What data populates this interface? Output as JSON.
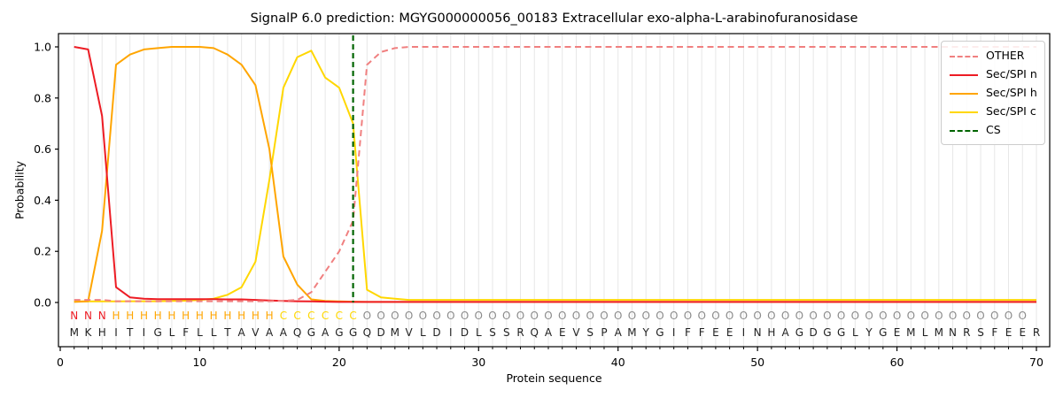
{
  "title": "SignalP 6.0 prediction: MGYG000000056_00183 Extracellular exo-alpha-L-arabinofuranosidase",
  "chart_data": {
    "type": "line",
    "title": "SignalP 6.0 prediction: MGYG000000056_00183 Extracellular exo-alpha-L-arabinofuranosidase",
    "xlabel": "Protein sequence",
    "ylabel": "Probability",
    "x_ticks": [
      0,
      10,
      20,
      30,
      40,
      50,
      60,
      70
    ],
    "y_ticks": [
      "0.0",
      "0.2",
      "0.4",
      "0.6",
      "0.8",
      "1.0"
    ],
    "xlim": [
      -0.2,
      71.2
    ],
    "ylim": [
      -0.17,
      1.05
    ],
    "grid": "vertical line per residue, light gray; no horizontal grid",
    "legend_position": "upper right",
    "x_first": 1,
    "x_count": 70,
    "series": [
      {
        "name": "OTHER",
        "color": "#f08080",
        "style": "dashed",
        "values": [
          0.01,
          0.01,
          0.01,
          0.005,
          0.005,
          0.005,
          0.005,
          0.005,
          0.005,
          0.005,
          0.005,
          0.005,
          0.005,
          0.005,
          0.005,
          0.007,
          0.01,
          0.04,
          0.12,
          0.2,
          0.32,
          0.93,
          0.98,
          0.995,
          1.0,
          1.0,
          1.0,
          1.0,
          1.0,
          1.0,
          1.0,
          1.0,
          1.0,
          1.0,
          1.0,
          1.0,
          1.0,
          1.0,
          1.0,
          1.0,
          1.0,
          1.0,
          1.0,
          1.0,
          1.0,
          1.0,
          1.0,
          1.0,
          1.0,
          1.0,
          1.0,
          1.0,
          1.0,
          1.0,
          1.0,
          1.0,
          1.0,
          1.0,
          1.0,
          1.0,
          1.0,
          1.0,
          1.0,
          1.0,
          1.0,
          1.0,
          1.0,
          1.0,
          1.0,
          1.0
        ]
      },
      {
        "name": "Sec/SPI n",
        "color": "#ed1c24",
        "style": "solid",
        "values": [
          1.0,
          0.99,
          0.73,
          0.06,
          0.02,
          0.015,
          0.013,
          0.013,
          0.013,
          0.013,
          0.013,
          0.012,
          0.012,
          0.01,
          0.008,
          0.006,
          0.005,
          0.004,
          0.003,
          0.002,
          0.002,
          0.002,
          0.002,
          0.002,
          0.002,
          0.002,
          0.002,
          0.002,
          0.002,
          0.002,
          0.002,
          0.002,
          0.002,
          0.002,
          0.002,
          0.002,
          0.002,
          0.002,
          0.002,
          0.002,
          0.002,
          0.002,
          0.002,
          0.002,
          0.002,
          0.002,
          0.002,
          0.002,
          0.002,
          0.002,
          0.002,
          0.002,
          0.002,
          0.002,
          0.002,
          0.002,
          0.002,
          0.002,
          0.002,
          0.002,
          0.002,
          0.002,
          0.002,
          0.002,
          0.002,
          0.002,
          0.002,
          0.002,
          0.002,
          0.002
        ]
      },
      {
        "name": "Sec/SPI h",
        "color": "#ffa500",
        "style": "solid",
        "values": [
          0.002,
          0.005,
          0.28,
          0.93,
          0.97,
          0.99,
          0.995,
          1.0,
          1.0,
          1.0,
          0.995,
          0.97,
          0.93,
          0.85,
          0.6,
          0.18,
          0.07,
          0.012,
          0.006,
          0.004,
          0.003,
          0.002,
          0.002,
          0.002,
          0.002,
          0.002,
          0.002,
          0.002,
          0.002,
          0.002,
          0.002,
          0.002,
          0.002,
          0.002,
          0.002,
          0.002,
          0.002,
          0.002,
          0.002,
          0.002,
          0.002,
          0.002,
          0.002,
          0.002,
          0.002,
          0.002,
          0.002,
          0.002,
          0.002,
          0.002,
          0.002,
          0.002,
          0.002,
          0.002,
          0.002,
          0.002,
          0.002,
          0.002,
          0.002,
          0.002,
          0.002,
          0.002,
          0.002,
          0.002,
          0.002,
          0.002,
          0.002,
          0.002,
          0.002,
          0.002
        ]
      },
      {
        "name": "Sec/SPI c",
        "color": "#ffd700",
        "style": "solid",
        "values": [
          0.004,
          0.004,
          0.004,
          0.004,
          0.005,
          0.005,
          0.005,
          0.006,
          0.007,
          0.01,
          0.015,
          0.03,
          0.06,
          0.16,
          0.48,
          0.84,
          0.96,
          0.985,
          0.88,
          0.84,
          0.7,
          0.05,
          0.02,
          0.015,
          0.01,
          0.01,
          0.01,
          0.01,
          0.01,
          0.01,
          0.01,
          0.01,
          0.01,
          0.01,
          0.01,
          0.01,
          0.01,
          0.01,
          0.01,
          0.01,
          0.01,
          0.01,
          0.01,
          0.01,
          0.01,
          0.01,
          0.01,
          0.01,
          0.01,
          0.01,
          0.01,
          0.01,
          0.01,
          0.01,
          0.01,
          0.01,
          0.01,
          0.01,
          0.01,
          0.01,
          0.01,
          0.01,
          0.01,
          0.01,
          0.01,
          0.01,
          0.01,
          0.01,
          0.01,
          0.01
        ]
      }
    ],
    "cs_line": {
      "name": "CS",
      "position": 21,
      "color": "#006400",
      "style": "dashed"
    },
    "sequence": "MKHITIGLFLLTAVAAQGAGGQDMVLDIDLSSRQAEVSPAMYGIFFEEINHAGDGGLYGEMLMNRSFEER",
    "region_labels": "NNNHHHHHHHHHHHHCCCCCCOOOOOOOOOOOOOOOOOOOOOOOOOOOOOOOOOOOOOOOOOOOOOOOO",
    "region_colors": {
      "N": "#ed1c24",
      "H": "#ffa500",
      "C": "#ffd700",
      "O": "#8c8c8c"
    },
    "sequence_color": "#1f1f1f"
  },
  "legend": {
    "items": [
      {
        "label": "OTHER",
        "color": "#f08080",
        "dash": true
      },
      {
        "label": "Sec/SPI n",
        "color": "#ed1c24",
        "dash": false
      },
      {
        "label": "Sec/SPI h",
        "color": "#ffa500",
        "dash": false
      },
      {
        "label": "Sec/SPI c",
        "color": "#ffd700",
        "dash": false
      },
      {
        "label": "CS",
        "color": "#006400",
        "dash": true
      }
    ]
  }
}
